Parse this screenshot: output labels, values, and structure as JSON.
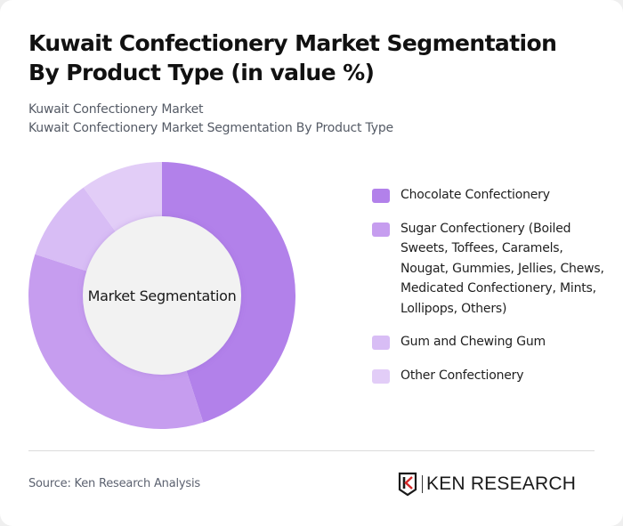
{
  "header": {
    "title": "Kuwait Confectionery Market Segmentation By Product Type (in value %)",
    "subtitle_line1": "Kuwait Confectionery Market",
    "subtitle_line2": "Kuwait Confectionery Market Segmentation By Product Type"
  },
  "chart": {
    "center_label": "Market Segmentation"
  },
  "legend": {
    "items": [
      {
        "label": "Chocolate Confectionery",
        "color": "#b281ea"
      },
      {
        "label": "Sugar Confectionery (Boiled Sweets, Toffees, Caramels, Nougat, Gummies, Jellies, Chews, Medicated Confectionery, Mints, Lollipops, Others)",
        "color": "#c69def"
      },
      {
        "label": "Gum and Chewing Gum",
        "color": "#d8bdf5"
      },
      {
        "label": "Other Confectionery",
        "color": "#e2cdf7"
      }
    ]
  },
  "footer": {
    "source": "Source: Ken Research Analysis",
    "logo_text": "KEN RESEARCH",
    "logo_icon": "ken-research-k-shield-icon"
  },
  "chart_data": {
    "type": "pie",
    "subtype": "donut",
    "title": "Kuwait Confectionery Market Segmentation By Product Type (in value %)",
    "center_label": "Market Segmentation",
    "categories": [
      "Chocolate Confectionery",
      "Sugar Confectionery (Boiled Sweets, Toffees, Caramels, Nougat, Gummies, Jellies, Chews, Medicated Confectionery, Mints, Lollipops, Others)",
      "Gum and Chewing Gum",
      "Other Confectionery"
    ],
    "values": [
      45,
      35,
      10,
      10
    ],
    "colors": [
      "#b281ea",
      "#c69def",
      "#d8bdf5",
      "#e2cdf7"
    ],
    "start_angle": "top, clockwise",
    "legend_position": "right"
  }
}
